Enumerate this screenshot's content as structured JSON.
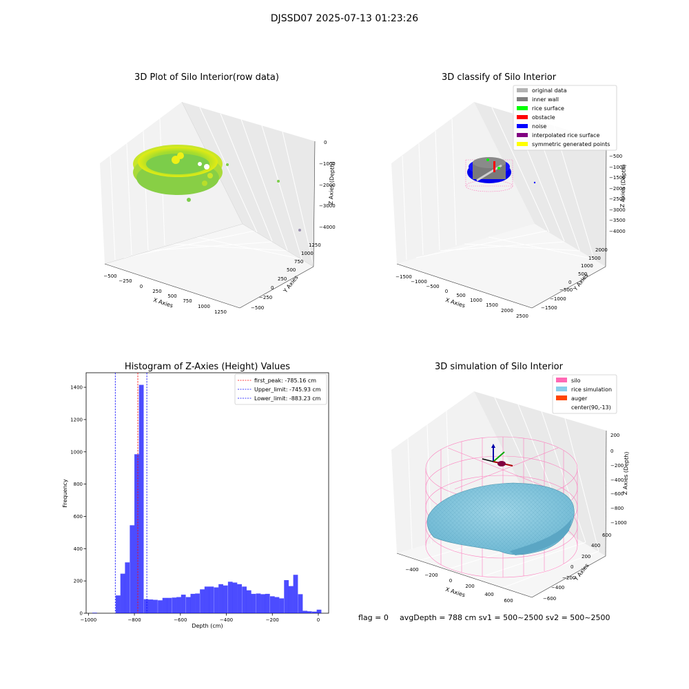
{
  "figure": {
    "suptitle": "DJSSD07 2025-07-13 01:23:26",
    "footer": {
      "flag": "flag = 0",
      "stats": "avgDepth = 788 cm  sv1 = 500~2500  sv2 = 500~2500"
    }
  },
  "panels": {
    "raw": {
      "title": "3D Plot of Silo Interior(row data)",
      "xlabel": "X Axies",
      "ylabel": "Y Axies",
      "zlabel": "Z Axies (Depth)",
      "xticks": [
        "−500",
        "−250",
        "0",
        "250",
        "500",
        "750",
        "1000",
        "1250"
      ],
      "yticks": [
        "−500",
        "−250",
        "0",
        "250",
        "500",
        "750",
        "1000",
        "1250"
      ],
      "zticks": [
        "0",
        "−1000",
        "−2000",
        "−3000",
        "−4000"
      ]
    },
    "classify": {
      "title": "3D classify of Silo Interior",
      "xlabel": "X Axies",
      "ylabel": "Y Axies",
      "zlabel": "Z Axies (Depth)",
      "xticks": [
        "−1500",
        "−1000",
        "−500",
        "0",
        "500",
        "1000",
        "1500",
        "2000",
        "2500"
      ],
      "yticks": [
        "−1500",
        "−1000",
        "−500",
        "0",
        "500",
        "1000",
        "1500",
        "2000"
      ],
      "zticks": [
        "−500",
        "−1000",
        "−1500",
        "−2000",
        "−2500",
        "−3000",
        "−3500",
        "−4000"
      ],
      "legend": [
        {
          "label": "original data",
          "color": "#b3b3b3"
        },
        {
          "label": "inner wall",
          "color": "#808080"
        },
        {
          "label": "rice surface",
          "color": "#00ff00"
        },
        {
          "label": "obstacle",
          "color": "#ff0000"
        },
        {
          "label": "noise",
          "color": "#0000ff"
        },
        {
          "label": "interpolated rice surface",
          "color": "#800080"
        },
        {
          "label": "symmetric generated points",
          "color": "#ffff00"
        }
      ]
    },
    "simulation": {
      "title": "3D simulation of Silo Interior",
      "xlabel": "X Axies",
      "ylabel": "Y Axies",
      "zlabel": "Z Axies (Depth)",
      "xticks": [
        "−400",
        "−200",
        "0",
        "200",
        "400",
        "600"
      ],
      "yticks": [
        "600",
        "400",
        "200",
        "0",
        "−200",
        "−400",
        "−600"
      ],
      "zticks": [
        "200",
        "0",
        "−200",
        "−400",
        "−600",
        "−800",
        "−1000"
      ],
      "legend": [
        {
          "label": "silo",
          "color": "#ff69b4"
        },
        {
          "label": "rice simulation",
          "color": "#87ceeb"
        },
        {
          "label": "auger",
          "color": "#ff4500"
        },
        {
          "label": "center(90,-13)",
          "color": "#ffffff"
        }
      ]
    }
  },
  "chart_data": {
    "type": "bar",
    "title": "Histogram of Z-Axies (Height) Values",
    "xlabel": "Depth (cm)",
    "ylabel": "Frequency",
    "xlim": [
      -1010,
      45
    ],
    "ylim": [
      0,
      1490
    ],
    "bin_width": 20.33,
    "color": "#0000ff",
    "xticks": [
      {
        "value": -1000,
        "label": "−1000"
      },
      {
        "value": -800,
        "label": "−800"
      },
      {
        "value": -600,
        "label": "−600"
      },
      {
        "value": -400,
        "label": "−400"
      },
      {
        "value": -200,
        "label": "−200"
      },
      {
        "value": 0,
        "label": "0"
      }
    ],
    "yticks": [
      0,
      200,
      400,
      600,
      800,
      1000,
      1200,
      1400
    ],
    "bins": [
      {
        "x": -983,
        "value": 3
      },
      {
        "x": -881,
        "value": 110
      },
      {
        "x": -861,
        "value": 245
      },
      {
        "x": -841,
        "value": 315
      },
      {
        "x": -820,
        "value": 545
      },
      {
        "x": -800,
        "value": 985
      },
      {
        "x": -780,
        "value": 1415
      },
      {
        "x": -759,
        "value": 87
      },
      {
        "x": -739,
        "value": 85
      },
      {
        "x": -719,
        "value": 83
      },
      {
        "x": -698,
        "value": 80
      },
      {
        "x": -678,
        "value": 95
      },
      {
        "x": -658,
        "value": 95
      },
      {
        "x": -637,
        "value": 97
      },
      {
        "x": -617,
        "value": 100
      },
      {
        "x": -597,
        "value": 115
      },
      {
        "x": -576,
        "value": 100
      },
      {
        "x": -556,
        "value": 120
      },
      {
        "x": -536,
        "value": 122
      },
      {
        "x": -515,
        "value": 148
      },
      {
        "x": -495,
        "value": 165
      },
      {
        "x": -475,
        "value": 165
      },
      {
        "x": -454,
        "value": 160
      },
      {
        "x": -434,
        "value": 180
      },
      {
        "x": -414,
        "value": 172
      },
      {
        "x": -393,
        "value": 195
      },
      {
        "x": -373,
        "value": 190
      },
      {
        "x": -353,
        "value": 180
      },
      {
        "x": -332,
        "value": 165
      },
      {
        "x": -312,
        "value": 142
      },
      {
        "x": -292,
        "value": 120
      },
      {
        "x": -271,
        "value": 122
      },
      {
        "x": -251,
        "value": 118
      },
      {
        "x": -231,
        "value": 120
      },
      {
        "x": -210,
        "value": 105
      },
      {
        "x": -190,
        "value": 100
      },
      {
        "x": -170,
        "value": 92
      },
      {
        "x": -149,
        "value": 205
      },
      {
        "x": -129,
        "value": 168
      },
      {
        "x": -109,
        "value": 238
      },
      {
        "x": -88,
        "value": 118
      },
      {
        "x": -68,
        "value": 15
      },
      {
        "x": -48,
        "value": 12
      },
      {
        "x": -27,
        "value": 10
      },
      {
        "x": -7,
        "value": 22
      }
    ],
    "vlines": [
      {
        "x": -785.16,
        "color": "#ff0000",
        "label": "first_peak: -785.16 cm"
      },
      {
        "x": -745.93,
        "color": "#0000ff",
        "label": "Upper_limit: -745.93 cm"
      },
      {
        "x": -883.23,
        "color": "#0000ff",
        "label": "Lower_limit: -883.23 cm"
      }
    ],
    "legend_position": "upper right"
  }
}
